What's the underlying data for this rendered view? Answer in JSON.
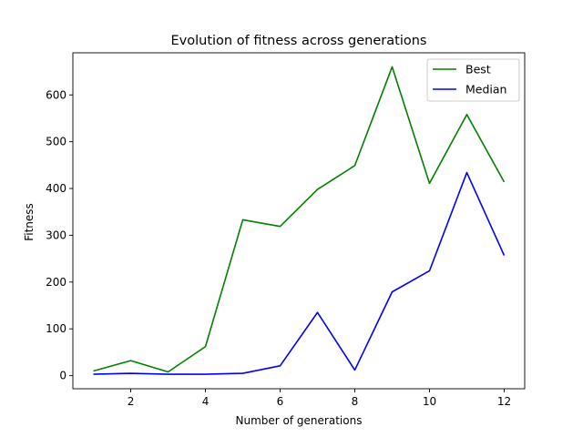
{
  "chart_data": {
    "type": "line",
    "title": "Evolution of fitness across generations",
    "xlabel": "Number of generations",
    "ylabel": "Fitness",
    "x": [
      1,
      2,
      3,
      4,
      5,
      6,
      7,
      8,
      9,
      10,
      11,
      12
    ],
    "xticks": [
      2,
      4,
      6,
      8,
      10,
      12
    ],
    "yticks": [
      0,
      100,
      200,
      300,
      400,
      500,
      600
    ],
    "xlim": [
      0.45,
      12.55
    ],
    "ylim": [
      -28,
      690
    ],
    "grid": false,
    "legend_position": "top-right",
    "series": [
      {
        "name": "Best",
        "color": "#008000",
        "values": [
          10,
          32,
          8,
          62,
          333,
          319,
          398,
          449,
          660,
          411,
          558,
          414
        ]
      },
      {
        "name": "Median",
        "color": "#0000ff",
        "values": [
          3,
          5,
          3,
          3,
          5,
          21,
          135,
          12,
          179,
          224,
          434,
          257
        ]
      }
    ]
  }
}
